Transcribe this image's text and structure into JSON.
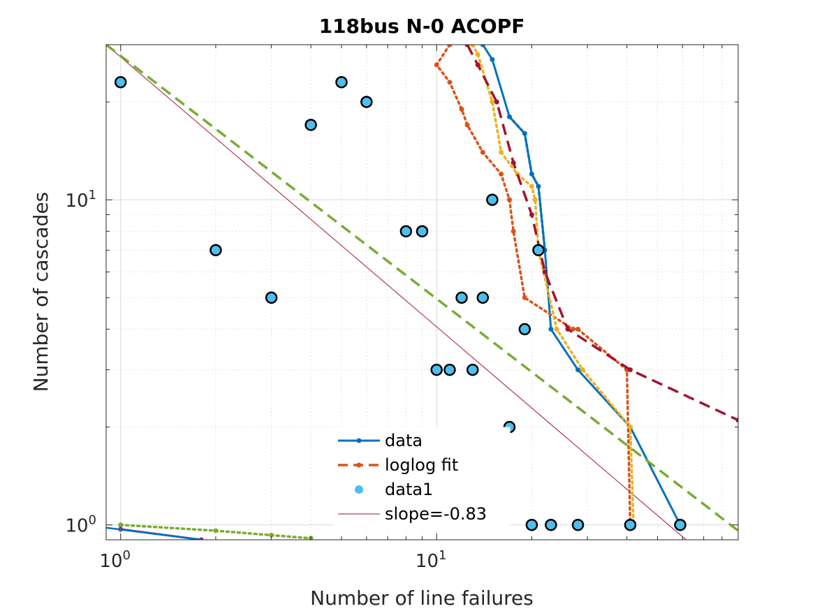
{
  "chart_data": {
    "type": "scatter",
    "title": "118bus N-0 ACOPF",
    "xlabel": "Number of line failures",
    "ylabel": "Number of cascades",
    "xscale": "log",
    "yscale": "log",
    "xlim": [
      0.9,
      90
    ],
    "ylim": [
      0.9,
      30
    ],
    "grid": true,
    "legend_position": "bottom-center",
    "x_ticks": [
      {
        "base": "10",
        "exp": "0",
        "value": 1
      },
      {
        "base": "10",
        "exp": "1",
        "value": 10
      }
    ],
    "y_ticks": [
      {
        "base": "10",
        "exp": "0",
        "value": 1
      },
      {
        "base": "10",
        "exp": "1",
        "value": 10
      }
    ],
    "legend": [
      {
        "label": "data",
        "color": "#0072BD",
        "style": "solid-dot"
      },
      {
        "label": "loglog fit",
        "color": "#D95319",
        "style": "dashed-dot"
      },
      {
        "label": "data1",
        "color": "#4DBEEE",
        "style": "marker"
      },
      {
        "label": "slope=-0.83",
        "color": "#A2142F",
        "style": "thin"
      }
    ],
    "data1_points": [
      {
        "x": 1,
        "y": 23
      },
      {
        "x": 2,
        "y": 7
      },
      {
        "x": 3,
        "y": 5
      },
      {
        "x": 4,
        "y": 17
      },
      {
        "x": 5,
        "y": 23
      },
      {
        "x": 6,
        "y": 20
      },
      {
        "x": 8,
        "y": 8
      },
      {
        "x": 9,
        "y": 8
      },
      {
        "x": 10,
        "y": 3
      },
      {
        "x": 11,
        "y": 3
      },
      {
        "x": 12,
        "y": 5
      },
      {
        "x": 13,
        "y": 3
      },
      {
        "x": 14,
        "y": 5
      },
      {
        "x": 15,
        "y": 10
      },
      {
        "x": 17,
        "y": 2
      },
      {
        "x": 19,
        "y": 4
      },
      {
        "x": 20,
        "y": 1
      },
      {
        "x": 21,
        "y": 7
      },
      {
        "x": 23,
        "y": 1
      },
      {
        "x": 28,
        "y": 1
      },
      {
        "x": 41,
        "y": 1
      },
      {
        "x": 59,
        "y": 1
      }
    ],
    "slope_line": {
      "slope": -0.83,
      "x": [
        0.9,
        90
      ],
      "y0_at_x1": 27.5
    },
    "series": [
      {
        "name": "data",
        "color": "#0072BD",
        "style": "solid-dot",
        "x": [
          14,
          15,
          17,
          19,
          20,
          21,
          22,
          23,
          28,
          41,
          59
        ],
        "y": [
          30,
          27,
          18,
          16,
          12,
          11,
          7,
          4,
          3,
          2,
          1
        ]
      },
      {
        "color": "#0072BD",
        "style": "dotted-overlay",
        "x": [
          17,
          19,
          20,
          21,
          22
        ],
        "y": [
          18,
          16,
          12,
          11,
          7
        ]
      },
      {
        "color": "#D95319",
        "style": "dotted-dot",
        "x": [
          11,
          10,
          11,
          12,
          12.5,
          14,
          16,
          17,
          17.5,
          19,
          27,
          28,
          40,
          41
        ],
        "y": [
          30,
          26,
          23,
          19,
          17,
          14,
          12,
          10,
          8,
          5,
          4,
          4,
          3,
          1
        ]
      },
      {
        "color": "#EDB120",
        "style": "dotted-dot",
        "x": [
          13,
          13.5,
          15,
          16,
          18,
          20,
          20.5,
          21,
          24,
          29,
          41,
          42
        ],
        "y": [
          30,
          28,
          20,
          14,
          12,
          11,
          10,
          7,
          4,
          3,
          2,
          1
        ]
      },
      {
        "color": "#A2142F",
        "style": "dashed-dot",
        "x": [
          12.5,
          13.5,
          15.5,
          17.5,
          20,
          22,
          26,
          41,
          90
        ],
        "y": [
          30,
          26,
          20,
          13,
          9,
          6,
          4,
          3,
          2.1
        ]
      },
      {
        "color": "#77AC30",
        "style": "dotted-dot",
        "x": [
          1,
          2,
          3,
          4
        ],
        "y": [
          1,
          0.96,
          0.93,
          0.91
        ]
      },
      {
        "color": "#77AC30",
        "style": "dashed",
        "x": [
          0.9,
          90
        ],
        "y": [
          30,
          0.96
        ]
      },
      {
        "color": "#7E2F8E",
        "style": "solid-dot",
        "x": [
          1,
          1.8
        ],
        "y": [
          0.97,
          0.9
        ]
      },
      {
        "color": "#0072BD",
        "style": "solid",
        "x": [
          0.9,
          1.8
        ],
        "y": [
          0.98,
          0.9
        ]
      }
    ]
  }
}
